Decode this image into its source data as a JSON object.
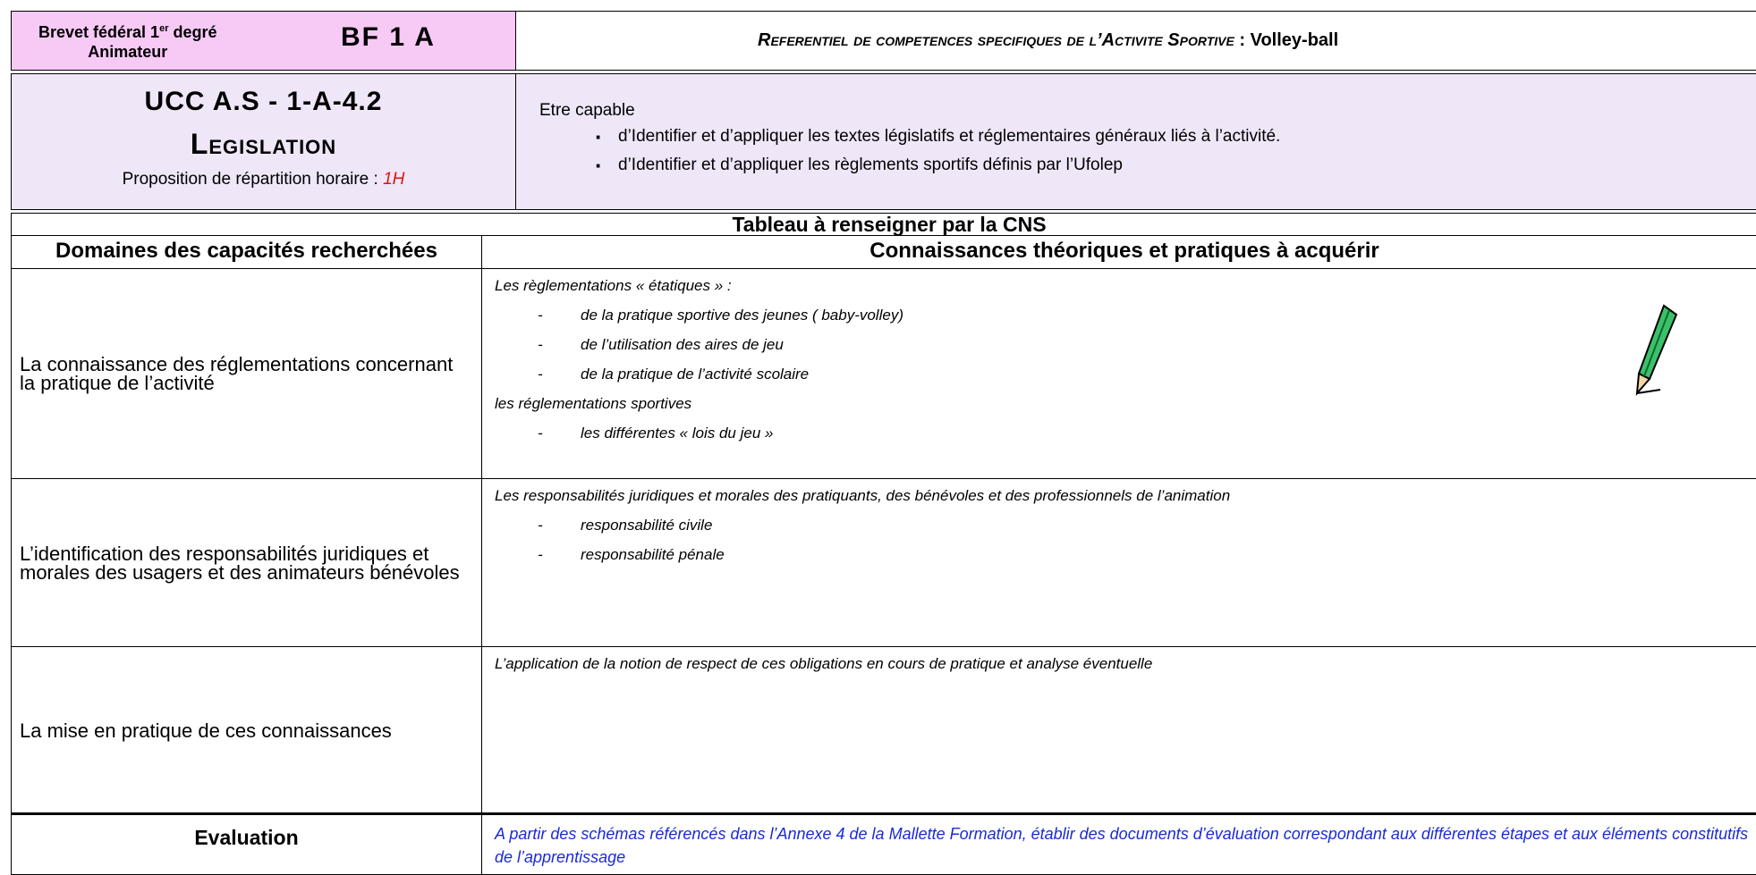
{
  "header": {
    "level_part1": "Brevet fédéral 1",
    "level_sup": "er",
    "level_part2": " degré",
    "role": "Animateur",
    "code": "BF 1 A",
    "referential": "Referentiel de competences specifiques de l’Activite Sportive",
    "sport": ": Volley-ball"
  },
  "unit": {
    "code": "UCC  A.S - 1-A-4.2",
    "title": "Legislation",
    "hours_label": "Proposition de répartition horaire : ",
    "hours": "1H",
    "intro": "Etre capable",
    "objectives": [
      "d’Identifier et d’appliquer les textes législatifs et réglementaires généraux liés à l’activité.",
      "d’Identifier et d’appliquer les règlements sportifs définis par l’Ufolep"
    ]
  },
  "table": {
    "caption": "Tableau à renseigner par la CNS",
    "columns": [
      "Domaines des capacités recherchées",
      "Connaissances théoriques et pratiques à acquérir"
    ],
    "rows": [
      {
        "domain": "La connaissance des réglementations concernant la pratique de l’activité",
        "content": [
          {
            "heading": "Les règlementations « étatiques » :",
            "items": [
              "de la pratique sportive des jeunes ( baby-volley)",
              "de l’utilisation des aires de jeu",
              "de la pratique de l’activité scolaire"
            ]
          },
          {
            "heading": "les réglementations sportives",
            "items": [
              "les différentes « lois du jeu »"
            ]
          }
        ]
      },
      {
        "domain": "L’identification des  responsabilités juridiques et morales des usagers et des animateurs bénévoles",
        "content": [
          {
            "heading": "Les responsabilités juridiques et morales des pratiquants, des bénévoles et des professionnels de l’animation",
            "items": [
              "responsabilité civile",
              "responsabilité pénale"
            ]
          }
        ]
      },
      {
        "domain": "La mise en pratique de ces connaissances",
        "content": [
          {
            "heading": "L’application de la notion de respect de ces obligations en cours de pratique et analyse éventuelle",
            "items": []
          }
        ]
      }
    ]
  },
  "evaluation": {
    "label": "Evaluation",
    "text": "A partir des schémas référencés dans l’Annexe 4 de la Mallette Formation, établir des documents d’évaluation correspondant aux différentes étapes et aux éléments constitutifs de l’apprentissage"
  }
}
